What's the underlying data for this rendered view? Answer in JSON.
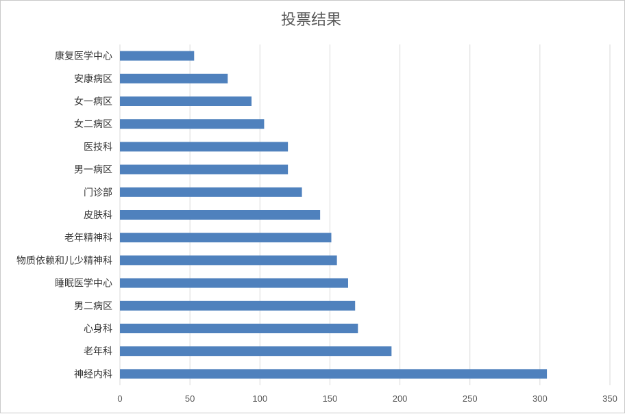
{
  "chart_data": {
    "type": "bar",
    "orientation": "horizontal",
    "title": "投票结果",
    "categories": [
      "康复医学中心",
      "安康病区",
      "女一病区",
      "女二病区",
      "医技科",
      "男一病区",
      "门诊部",
      "皮肤科",
      "老年精神科",
      "物质依赖和儿少精神科",
      "睡眠医学中心",
      "男二病区",
      "心身科",
      "老年科",
      "神经内科"
    ],
    "values": [
      53,
      77,
      94,
      103,
      120,
      120,
      130,
      143,
      151,
      155,
      163,
      168,
      170,
      194,
      305
    ],
    "xlim": [
      0,
      350
    ],
    "xticks": [
      "0",
      "50",
      "100",
      "150",
      "200",
      "250",
      "300",
      "350"
    ],
    "grid": true,
    "bar_color": "#4f81bd",
    "grid_color": "#d9d9d9"
  }
}
